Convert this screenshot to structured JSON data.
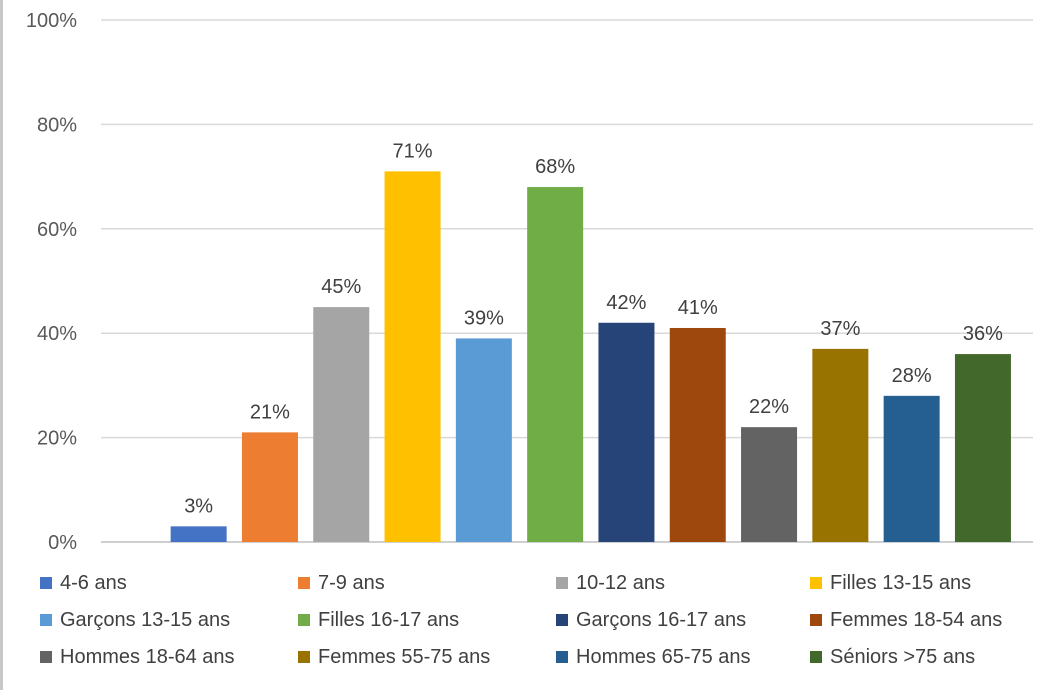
{
  "chart_data": {
    "type": "bar",
    "title": "",
    "xlabel": "",
    "ylabel": "",
    "ylim": [
      0,
      100
    ],
    "yticks": [
      "0%",
      "20%",
      "40%",
      "60%",
      "80%",
      "100%"
    ],
    "grid": true,
    "legend_position": "bottom",
    "categories": [
      "4-6 ans",
      "7-9 ans",
      "10-12 ans",
      "Filles 13-15 ans",
      "Garçons 13-15 ans",
      "Filles 16-17 ans",
      "Garçons 16-17 ans",
      "Femmes 18-54 ans",
      "Hommes 18-64 ans",
      "Femmes 55-75 ans",
      "Hommes 65-75 ans",
      "Séniors >75 ans"
    ],
    "values": [
      3,
      21,
      45,
      71,
      39,
      68,
      42,
      41,
      22,
      37,
      28,
      36
    ],
    "data_labels": [
      "3%",
      "21%",
      "45%",
      "71%",
      "39%",
      "68%",
      "42%",
      "41%",
      "22%",
      "37%",
      "28%",
      "36%"
    ],
    "colors": [
      "#4472c4",
      "#ed7d31",
      "#a5a5a5",
      "#ffc000",
      "#5b9bd5",
      "#70ad47",
      "#264478",
      "#9e480e",
      "#636363",
      "#997300",
      "#255e91",
      "#43682b"
    ]
  }
}
